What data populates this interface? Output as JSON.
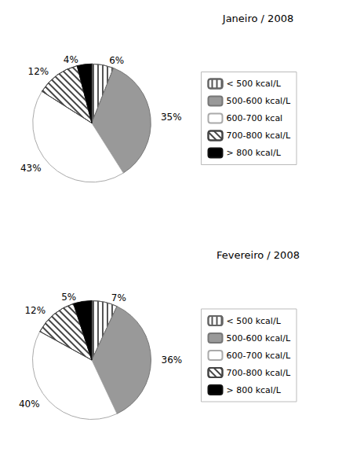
{
  "chart_data": [
    {
      "type": "pie",
      "title": "Janeiro / 2008",
      "categories": [
        "< 500 kcal/L",
        "500-600 kcal/L",
        "600-700 kcal",
        "700-800 kcal/L",
        "> 800 kcal/L"
      ],
      "values": [
        6,
        35,
        43,
        12,
        4
      ],
      "value_labels": [
        "6%",
        "35%",
        "43%",
        "12%",
        "4%"
      ],
      "colors": [
        "white",
        "#999999",
        "white",
        "white",
        "black"
      ],
      "data_labels": true,
      "legend": "right"
    },
    {
      "type": "pie",
      "title": "Fevereiro / 2008",
      "categories": [
        "< 500 kcal/L",
        "500-600 kcal/L",
        "600-700 kcal/L",
        "700-800 kcal/L",
        "> 800 kcal/L"
      ],
      "values": [
        7,
        36,
        40,
        12,
        5
      ],
      "value_labels": [
        "7%",
        "36%",
        "40%",
        "12%",
        "5%"
      ],
      "colors": [
        "white",
        "#999999",
        "white",
        "white",
        "black"
      ],
      "data_labels": true,
      "legend": "right"
    }
  ]
}
